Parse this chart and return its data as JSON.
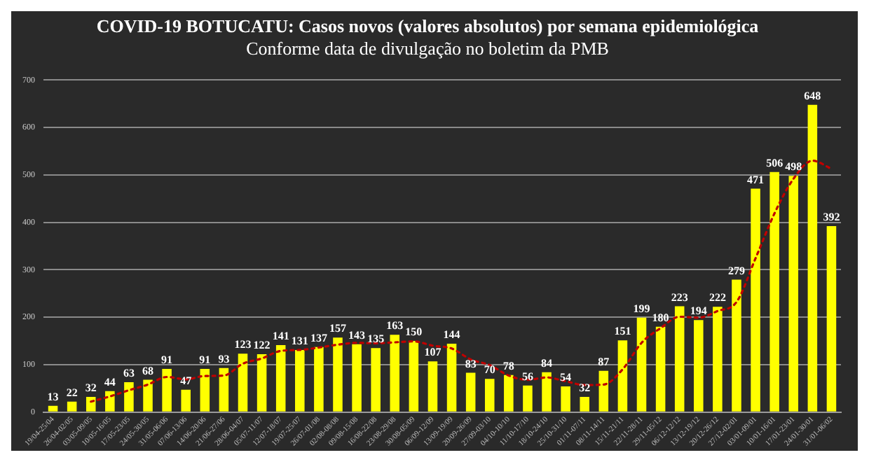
{
  "chart_data": {
    "type": "bar",
    "title": "COVID-19 BOTUCATU: Casos novos (valores absolutos) por semana epidemiológica",
    "subtitle": "Conforme data de divulgação no boletim da PMB",
    "categories": [
      "19/04-25/04",
      "26/04-02/05",
      "03/05-09/05",
      "10/05-16/05",
      "17/05-23/05",
      "24/05-30/05",
      "31/05-06/06",
      "07/06-13/06",
      "14/06-20/06",
      "21/06-27/06",
      "28/06-04/07",
      "05/07-11/07",
      "12/07-18/07",
      "19/07-25/07",
      "26/07-01/08",
      "02/08-08/08",
      "09/08-15/08",
      "16/08-22/08",
      "23/08-29/08",
      "30/08-05/09",
      "06/09-12/09",
      "13/09-19/09",
      "20/09-26/09",
      "27/09-03/10",
      "04/10-10/10",
      "11/10-17/10",
      "18/10-24/10",
      "25/10-31/10",
      "01/11-07/11",
      "08/11-14/11",
      "15/11-21/11",
      "22/11-28/11",
      "29/11-05/12",
      "06/12-12/12",
      "13/12-19/12",
      "20/12-26/12",
      "27/12-02/01",
      "03/01-09/01",
      "10/01-16/01",
      "17/01-23/01",
      "24/01-30/01",
      "31/01-06/02"
    ],
    "series": [
      {
        "color": "#ffff00",
        "values": [
          13,
          22,
          32,
          44,
          63,
          68,
          91,
          47,
          91,
          93,
          123,
          122,
          141,
          131,
          137,
          157,
          143,
          135,
          163,
          150,
          107,
          144,
          83,
          70,
          78,
          56,
          84,
          54,
          32,
          87,
          151,
          199,
          180,
          223,
          194,
          222,
          279,
          471,
          506,
          498,
          648,
          392
        ],
        "value_labels": [
          "13",
          "22",
          "32",
          "44",
          "63",
          "68",
          "91",
          "47",
          "91",
          "93",
          "123",
          "122",
          "141",
          "131",
          "137",
          "157",
          "143",
          "135",
          "163",
          "150",
          "107",
          "144",
          "83",
          "70",
          "78",
          "56",
          "84",
          "54",
          "32",
          "87",
          "151",
          "199",
          "180",
          "223",
          "194",
          "222",
          "279",
          "471",
          "506",
          "498",
          "648",
          "392"
        ]
      },
      {
        "type": "line",
        "color": "#c00000",
        "line_style": "dotted",
        "values": [
          null,
          null,
          22,
          33,
          46,
          58,
          74,
          69,
          76,
          77,
          102,
          113,
          129,
          131,
          136,
          142,
          146,
          145,
          147,
          149,
          140,
          134,
          111,
          99,
          77,
          68,
          73,
          65,
          57,
          58,
          90,
          146,
          177,
          201,
          199,
          213,
          232,
          324,
          419,
          492,
          530,
          513
        ]
      }
    ],
    "ylim": [
      0,
      700
    ],
    "yticks": [
      0,
      100,
      200,
      300,
      400,
      500,
      600,
      700
    ],
    "grid": "y",
    "legend": false
  }
}
